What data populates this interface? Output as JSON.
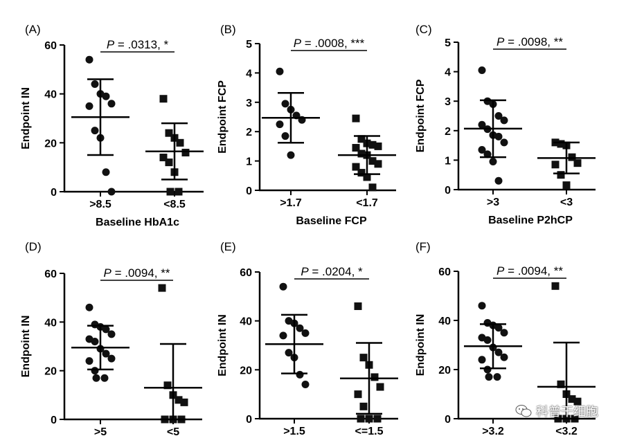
{
  "chart_data": [
    {
      "panel": "(A)",
      "type": "scatter",
      "ylabel": "Endpoint IN",
      "xlabel": "Baseline HbA1c",
      "ylim": [
        0,
        60
      ],
      "yticks": [
        "0",
        "20",
        "40",
        "60"
      ],
      "annotation": "P = .0313, *",
      "groups": [
        {
          "label": ">8.5",
          "marker": "circle",
          "mean": 30.5,
          "sd_low": 15,
          "sd_high": 46,
          "points": [
            54,
            44,
            40,
            39,
            36,
            35,
            25,
            22,
            8,
            0
          ]
        },
        {
          "label": "<8.5",
          "marker": "square",
          "mean": 16.5,
          "sd_low": 5,
          "sd_high": 28,
          "points": [
            38,
            24,
            22,
            20,
            16,
            14,
            12,
            8,
            0,
            0
          ]
        }
      ]
    },
    {
      "panel": "(B)",
      "type": "scatter",
      "ylabel": "Endpoint FCP",
      "xlabel": "Baseline FCP",
      "ylim": [
        0,
        5
      ],
      "yticks": [
        "0",
        "1",
        "2",
        "3",
        "4",
        "5"
      ],
      "annotation": "P = .0008, ***",
      "groups": [
        {
          "label": ">1.7",
          "marker": "circle",
          "mean": 2.47,
          "sd_low": 1.62,
          "sd_high": 3.32,
          "points": [
            4.05,
            2.95,
            2.75,
            2.55,
            2.4,
            2.25,
            1.85,
            1.2
          ]
        },
        {
          "label": "<1.7",
          "marker": "square",
          "mean": 1.2,
          "sd_low": 0.55,
          "sd_high": 1.85,
          "points": [
            2.45,
            1.75,
            1.6,
            1.55,
            1.5,
            1.45,
            1.25,
            1.2,
            1.0,
            0.9,
            0.8,
            0.6,
            0.45,
            0.1
          ]
        }
      ]
    },
    {
      "panel": "(C)",
      "type": "scatter",
      "ylabel": "Endpoint FCP",
      "xlabel": "Baseline P2hCP",
      "ylim": [
        0,
        5
      ],
      "yticks": [
        "0",
        "1",
        "2",
        "3",
        "4",
        "5"
      ],
      "annotation": "P = .0098, **",
      "groups": [
        {
          "label": ">3",
          "marker": "circle",
          "mean": 2.07,
          "sd_low": 1.1,
          "sd_high": 3.03,
          "points": [
            4.05,
            3.0,
            2.9,
            2.5,
            2.35,
            2.2,
            2.05,
            1.85,
            1.8,
            1.6,
            1.35,
            1.2,
            0.95,
            0.3
          ]
        },
        {
          "label": "<3",
          "marker": "square",
          "mean": 1.07,
          "sd_low": 0.55,
          "sd_high": 1.6,
          "points": [
            1.6,
            1.55,
            1.5,
            1.1,
            0.9,
            0.85,
            0.5,
            0.15
          ]
        }
      ]
    },
    {
      "panel": "(D)",
      "type": "scatter",
      "ylabel": "Endpoint IN",
      "xlabel": "",
      "ylim": [
        0,
        60
      ],
      "yticks": [
        "0",
        "20",
        "40",
        "60"
      ],
      "annotation": "P = .0094, **",
      "groups": [
        {
          "label": ">5",
          "marker": "circle",
          "mean": 29.5,
          "sd_low": 20.5,
          "sd_high": 38.5,
          "points": [
            46,
            39,
            38,
            37,
            35,
            33,
            32,
            29,
            27,
            25,
            24,
            20,
            17,
            17
          ]
        },
        {
          "label": "<5",
          "marker": "square",
          "mean": 13,
          "sd_low": 0,
          "sd_high": 31,
          "points": [
            54,
            14,
            10,
            8,
            7,
            0,
            0,
            0
          ]
        }
      ]
    },
    {
      "panel": "(E)",
      "type": "scatter",
      "ylabel": "Endpoint IN",
      "xlabel": "",
      "ylim": [
        0,
        60
      ],
      "yticks": [
        "0",
        "20",
        "40",
        "60"
      ],
      "annotation": "P = .0204, *",
      "groups": [
        {
          "label": ">1.5",
          "marker": "circle",
          "mean": 30.5,
          "sd_low": 18.5,
          "sd_high": 42.5,
          "points": [
            54,
            40,
            39,
            37,
            35,
            34,
            27,
            25,
            18,
            14
          ]
        },
        {
          "label": "<=1.5",
          "marker": "square",
          "mean": 16.5,
          "sd_low": 2,
          "sd_high": 31,
          "points": [
            46,
            25,
            22,
            17,
            13,
            10,
            5,
            0,
            0,
            0
          ]
        }
      ]
    },
    {
      "panel": "(F)",
      "type": "scatter",
      "ylabel": "Endpoint IN",
      "xlabel": "",
      "ylim": [
        0,
        60
      ],
      "yticks": [
        "0",
        "20",
        "40",
        "60"
      ],
      "annotation": "P = .0094, **",
      "groups": [
        {
          "label": ">3.2",
          "marker": "circle",
          "mean": 29.5,
          "sd_low": 20.5,
          "sd_high": 38.5,
          "points": [
            46,
            39,
            38,
            37,
            35,
            33,
            32,
            29,
            27,
            25,
            24,
            20,
            17,
            17
          ]
        },
        {
          "label": "<3.2",
          "marker": "square",
          "mean": 13,
          "sd_low": 0,
          "sd_high": 31,
          "points": [
            54,
            14,
            10,
            8,
            7,
            0,
            0,
            0
          ]
        }
      ]
    }
  ],
  "watermark": {
    "text": "科普干细胞",
    "icon": "wechat-icon"
  }
}
